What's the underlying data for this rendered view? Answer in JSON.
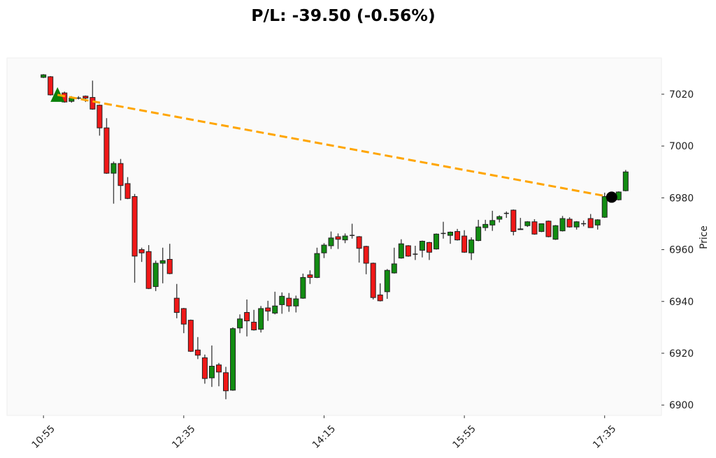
{
  "title": "P/L: -39.50 (-0.56%)",
  "axes": {
    "ylabel": "Price"
  },
  "chart_data": {
    "type": "candlestick",
    "title": "P/L: -39.50 (-0.56%)",
    "xlabel": "",
    "ylabel": "Price",
    "ylim": [
      6896,
      7034
    ],
    "xlim": [
      -5.2,
      88.1
    ],
    "grid": false,
    "yaxis_position": "right",
    "yticks": [
      6900,
      6920,
      6940,
      6960,
      6980,
      7000,
      7020
    ],
    "xticks": [
      {
        "index": 0,
        "label": "10:55"
      },
      {
        "index": 20,
        "label": "12:35"
      },
      {
        "index": 40,
        "label": "14:15"
      },
      {
        "index": 60,
        "label": "15:55"
      },
      {
        "index": 80,
        "label": "17:35"
      }
    ],
    "columns": [
      "time",
      "open",
      "high",
      "low",
      "close"
    ],
    "candles": [
      [
        "10:55",
        7026.5,
        7027.75,
        7026.25,
        7027.5
      ],
      [
        "11:00",
        7026.75,
        7027.0,
        7019.5,
        7019.75
      ],
      [
        "11:05",
        7019.75,
        7021.0,
        7018.5,
        7020.25
      ],
      [
        "11:10",
        7020.5,
        7021.0,
        7016.75,
        7017.0
      ],
      [
        "11:15",
        7017.25,
        7019.25,
        7016.75,
        7018.5
      ],
      [
        "11:20",
        7018.5,
        7019.25,
        7018.0,
        7018.5
      ],
      [
        "11:25",
        7019.25,
        7019.5,
        7017.0,
        7018.5
      ],
      [
        "11:30",
        7018.75,
        7025.25,
        7014.0,
        7014.25
      ],
      [
        "11:35",
        7015.75,
        7016.0,
        7004.0,
        7007.0
      ],
      [
        "11:40",
        7007.0,
        7010.75,
        6989.25,
        6989.5
      ],
      [
        "11:45",
        6989.5,
        6994.0,
        6977.75,
        6993.25
      ],
      [
        "11:50",
        6993.25,
        6995.0,
        6979.0,
        6984.75
      ],
      [
        "11:55",
        6985.5,
        6988.0,
        6979.5,
        6979.75
      ],
      [
        "12:00",
        6980.5,
        6981.5,
        6947.25,
        6957.5
      ],
      [
        "12:05",
        6960.0,
        6960.75,
        6955.25,
        6958.75
      ],
      [
        "12:10",
        6959.25,
        6961.75,
        6944.75,
        6945.0
      ],
      [
        "12:15",
        6945.75,
        6955.75,
        6944.0,
        6954.75
      ],
      [
        "12:20",
        6954.75,
        6960.75,
        6947.0,
        6955.75
      ],
      [
        "12:25",
        6956.25,
        6962.25,
        6950.5,
        6950.75
      ],
      [
        "12:30",
        6941.25,
        6946.75,
        6933.5,
        6935.75
      ],
      [
        "12:35",
        6937.25,
        6937.5,
        6927.75,
        6931.25
      ],
      [
        "12:40",
        6932.75,
        6933.0,
        6920.5,
        6920.75
      ],
      [
        "12:45",
        6921.25,
        6926.25,
        6917.75,
        6919.25
      ],
      [
        "12:50",
        6918.25,
        6919.5,
        6908.25,
        6910.25
      ],
      [
        "12:55",
        6910.5,
        6923.0,
        6907.0,
        6915.0
      ],
      [
        "13:00",
        6915.5,
        6916.25,
        6907.25,
        6912.75
      ],
      [
        "13:05",
        6912.5,
        6914.75,
        6902.25,
        6905.5
      ],
      [
        "13:10",
        6905.75,
        6930.0,
        6905.5,
        6929.5
      ],
      [
        "13:15",
        6929.75,
        6935.0,
        6927.75,
        6933.25
      ],
      [
        "13:20",
        6935.75,
        6940.75,
        6926.5,
        6932.5
      ],
      [
        "13:25",
        6932.0,
        6936.75,
        6928.75,
        6929.0
      ],
      [
        "13:30",
        6929.25,
        6938.25,
        6928.0,
        6937.25
      ],
      [
        "13:35",
        6937.5,
        6940.25,
        6932.5,
        6936.25
      ],
      [
        "13:40",
        6935.5,
        6943.75,
        6935.0,
        6938.25
      ],
      [
        "13:45",
        6938.75,
        6943.5,
        6935.25,
        6942.0
      ],
      [
        "13:50",
        6941.25,
        6943.25,
        6936.0,
        6938.25
      ],
      [
        "13:55",
        6938.25,
        6942.25,
        6935.75,
        6941.0
      ],
      [
        "14:00",
        6941.25,
        6950.75,
        6941.0,
        6949.25
      ],
      [
        "14:05",
        6950.25,
        6952.0,
        6946.75,
        6949.25
      ],
      [
        "14:10",
        6949.25,
        6960.75,
        6949.0,
        6958.5
      ],
      [
        "14:15",
        6958.75,
        6962.5,
        6956.75,
        6961.75
      ],
      [
        "14:20",
        6961.5,
        6967.0,
        6960.25,
        6964.5
      ],
      [
        "14:25",
        6965.0,
        6966.25,
        6960.25,
        6964.0
      ],
      [
        "14:30",
        6963.75,
        6966.25,
        6962.5,
        6965.25
      ],
      [
        "14:35",
        6965.5,
        6970.0,
        6964.25,
        6965.5
      ],
      [
        "14:40",
        6965.0,
        6965.25,
        6955.0,
        6960.5
      ],
      [
        "14:45",
        6961.25,
        6961.5,
        6950.5,
        6954.75
      ],
      [
        "14:50",
        6954.75,
        6955.0,
        6940.75,
        6941.5
      ],
      [
        "14:55",
        6942.5,
        6947.0,
        6940.0,
        6940.25
      ],
      [
        "15:00",
        6943.75,
        6952.5,
        6941.0,
        6952.0
      ],
      [
        "15:05",
        6951.0,
        6960.75,
        6950.75,
        6954.5
      ],
      [
        "15:10",
        6956.75,
        6964.0,
        6956.5,
        6962.25
      ],
      [
        "15:15",
        6961.5,
        6961.75,
        6957.25,
        6957.5
      ],
      [
        "15:20",
        6958.25,
        6961.5,
        6956.0,
        6958.25
      ],
      [
        "15:25",
        6959.75,
        6963.5,
        6957.0,
        6963.25
      ],
      [
        "15:30",
        6962.75,
        6963.0,
        6956.0,
        6959.0
      ],
      [
        "15:35",
        6960.25,
        6966.25,
        6960.0,
        6966.0
      ],
      [
        "15:40",
        6966.25,
        6970.75,
        6964.25,
        6966.25
      ],
      [
        "15:45",
        6965.5,
        6967.0,
        6962.25,
        6966.75
      ],
      [
        "15:50",
        6967.0,
        6968.0,
        6963.5,
        6963.75
      ],
      [
        "15:55",
        6965.25,
        6967.5,
        6958.75,
        6959.0
      ],
      [
        "16:00",
        6958.75,
        6964.75,
        6956.0,
        6963.75
      ],
      [
        "16:05",
        6963.5,
        6971.5,
        6963.25,
        6968.75
      ],
      [
        "16:10",
        6968.5,
        6971.5,
        6967.25,
        6969.75
      ],
      [
        "16:15",
        6969.5,
        6975.0,
        6967.25,
        6971.25
      ],
      [
        "16:20",
        6971.75,
        6973.25,
        6970.5,
        6972.75
      ],
      [
        "16:25",
        6974.0,
        6974.75,
        6972.25,
        6974.0
      ],
      [
        "16:30",
        6975.25,
        6975.5,
        6965.5,
        6967.0
      ],
      [
        "16:35",
        6968.0,
        6972.25,
        6967.75,
        6967.75
      ],
      [
        "16:40",
        6969.25,
        6971.0,
        6968.75,
        6970.75
      ],
      [
        "16:45",
        6970.75,
        6971.75,
        6965.75,
        6966.0
      ],
      [
        "16:50",
        6967.0,
        6970.0,
        6966.75,
        6970.0
      ],
      [
        "16:55",
        6971.0,
        6971.25,
        6964.75,
        6965.0
      ],
      [
        "17:00",
        6964.0,
        6969.5,
        6963.75,
        6969.25
      ],
      [
        "17:05",
        6967.25,
        6973.0,
        6967.0,
        6972.0
      ],
      [
        "17:10",
        6971.75,
        6972.5,
        6968.5,
        6968.75
      ],
      [
        "17:15",
        6968.75,
        6971.0,
        6967.75,
        6970.75
      ],
      [
        "17:20",
        6970.0,
        6971.25,
        6969.0,
        6970.0
      ],
      [
        "17:25",
        6972.0,
        6973.75,
        6968.5,
        6968.5
      ],
      [
        "17:30",
        6969.5,
        6971.75,
        6967.75,
        6971.5
      ],
      [
        "17:35",
        6972.5,
        6982.0,
        6972.25,
        6980.5
      ],
      [
        "17:40",
        6980.25,
        6981.75,
        6979.75,
        6981.0
      ],
      [
        "17:45",
        6979.25,
        6982.5,
        6979.0,
        6982.25
      ],
      [
        "17:50",
        6982.75,
        6990.75,
        6982.5,
        6990.0
      ]
    ],
    "trade": {
      "entry": {
        "time": "11:05",
        "price": 7019.75,
        "marker": "triangle-up",
        "color": "#0a800a"
      },
      "exit": {
        "time": "17:40",
        "price": 6980.25,
        "marker": "circle",
        "color": "#000000"
      },
      "connector": {
        "color": "#FFA500",
        "style": "dashed"
      },
      "pnl": -39.5,
      "pnl_pct": -0.56
    },
    "colors": {
      "up": "#128c12",
      "down": "#f01818",
      "edge": "#222222",
      "wick": "#444444",
      "doji": "#222222",
      "plot_background": "#fafafa",
      "plot_border": "#eeeeee"
    }
  }
}
